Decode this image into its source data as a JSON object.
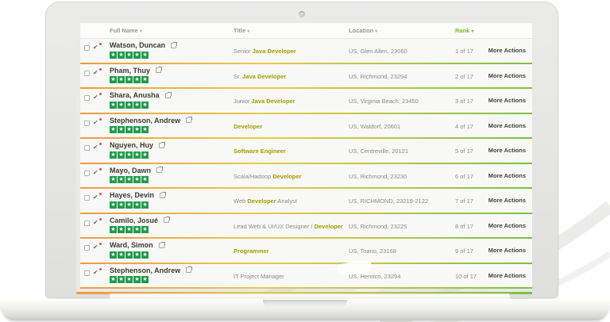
{
  "app": {
    "name": "candidate-search-results"
  },
  "table": {
    "sort_glyph": "▾",
    "star_glyph": "★",
    "more_actions_label": "More Actions",
    "columns": [
      {
        "label": "Full Name"
      },
      {
        "label": "Title"
      },
      {
        "label": "Location"
      },
      {
        "label": "Rank",
        "active": true
      }
    ],
    "rows": [
      {
        "name": "Watson, Duncan",
        "rating": 5,
        "title_parts": [
          {
            "text": "Senior ",
            "highlight": false
          },
          {
            "text": "Java Developer",
            "highlight": true
          }
        ],
        "location": "US, Glen Allen, 23060",
        "rank": "1 of 17"
      },
      {
        "name": "Pham, Thuy",
        "rating": 5,
        "title_parts": [
          {
            "text": "Sr. ",
            "highlight": false
          },
          {
            "text": "Java Developer",
            "highlight": true
          }
        ],
        "location": "US, Richmond, 23294",
        "rank": "2 of 17"
      },
      {
        "name": "Shara, Anusha",
        "rating": 5,
        "title_parts": [
          {
            "text": "Junior ",
            "highlight": false
          },
          {
            "text": "Java Developer",
            "highlight": true
          }
        ],
        "location": "US, Virginia Beach, 23450",
        "rank": "3 of 17"
      },
      {
        "name": "Stephenson, Andrew",
        "rating": 5,
        "title_parts": [
          {
            "text": "Developer",
            "highlight": true
          }
        ],
        "location": "US, Waldorf, 20601",
        "rank": "4 of 17"
      },
      {
        "name": "Nguyen, Huy",
        "rating": 5,
        "title_parts": [
          {
            "text": "Software Engineer",
            "highlight": true
          }
        ],
        "location": "US, Centreville, 20121",
        "rank": "5 of 17"
      },
      {
        "name": "Mayo, Dawn",
        "rating": 5,
        "title_parts": [
          {
            "text": "Scala/Hadoop ",
            "highlight": false
          },
          {
            "text": "Developer",
            "highlight": true
          }
        ],
        "location": "US, Richmond, 23230",
        "rank": "6 of 17"
      },
      {
        "name": "Hayes, Devin",
        "rating": 5,
        "title_parts": [
          {
            "text": "Web ",
            "highlight": false
          },
          {
            "text": "Developer",
            "highlight": true
          },
          {
            "text": " Analyst",
            "highlight": false
          }
        ],
        "location": "US, RICHMOND, 23219-2122",
        "rank": "7 of 17"
      },
      {
        "name": "Camilo, Josué",
        "rating": 5,
        "title_parts": [
          {
            "text": "Lead Web & UI/UX Designer / ",
            "highlight": false
          },
          {
            "text": "Developer",
            "highlight": true
          }
        ],
        "location": "US, Richmond, 23225",
        "rank": "8 of 17"
      },
      {
        "name": "Ward, Simon",
        "rating": 5,
        "title_parts": [
          {
            "text": "Programmer",
            "highlight": true
          }
        ],
        "location": "US, Toano, 23168",
        "rank": "9 of 17"
      },
      {
        "name": "Stephenson, Andrew",
        "rating": 5,
        "title_parts": [
          {
            "text": "IT Project Manager",
            "highlight": false
          }
        ],
        "location": "US, Henrico, 23294",
        "rank": "10 of 17"
      }
    ]
  },
  "colors": {
    "accent_green": "#76b82a",
    "star_green": "#219b4b",
    "keyword_highlight": "#a0a000",
    "separator_gradient": [
      "#ed9b47",
      "#e6cb4f",
      "#7cc142"
    ],
    "flag_icon_blue": "#4a72aa",
    "flag_icon_dot_red": "#d94f3d"
  }
}
